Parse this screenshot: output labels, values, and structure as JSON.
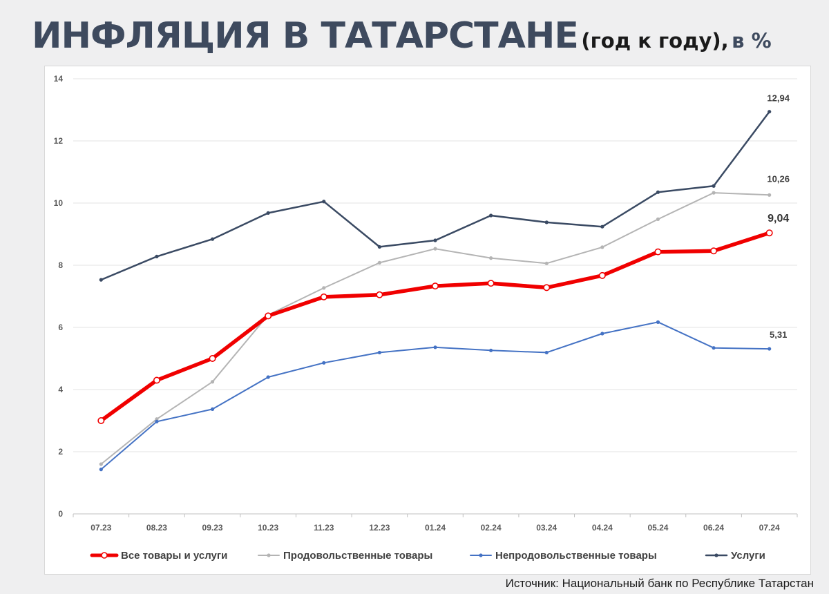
{
  "title": {
    "main": "ИНФЛЯЦИЯ В ТАТАРСТАНЕ",
    "sub": "(год к году),",
    "unit": "в %"
  },
  "source": "Источник: Национальный банк по Республике Татарстан",
  "chart_data": {
    "type": "line",
    "categories": [
      "07.23",
      "08.23",
      "09.23",
      "10.23",
      "11.23",
      "12.23",
      "01.24",
      "02.24",
      "03.24",
      "04.24",
      "05.24",
      "06.24",
      "07.24"
    ],
    "ylim": [
      0,
      14
    ],
    "yticks": [
      0,
      2,
      4,
      6,
      8,
      10,
      12,
      14
    ],
    "grid": true,
    "legend": "bottom",
    "series": [
      {
        "name": "Все товары и услуги",
        "color": "#f00000",
        "values": [
          3.0,
          4.3,
          5.0,
          6.37,
          6.98,
          7.05,
          7.33,
          7.42,
          7.28,
          7.67,
          8.43,
          8.46,
          9.04
        ],
        "end_label": "9,04"
      },
      {
        "name": "Продовольственные товары",
        "color": "#b4b4b4",
        "values": [
          1.6,
          3.05,
          4.25,
          6.4,
          7.27,
          8.08,
          8.53,
          8.23,
          8.06,
          8.58,
          9.48,
          10.33,
          10.26
        ],
        "end_label": "10,26"
      },
      {
        "name": "Непродовольственные товары",
        "color": "#4472c4",
        "values": [
          1.43,
          2.97,
          3.37,
          4.4,
          4.86,
          5.19,
          5.36,
          5.26,
          5.19,
          5.8,
          6.17,
          5.34,
          5.31
        ],
        "end_label": "5,31"
      },
      {
        "name": "Услуги",
        "color": "#3a4a63",
        "values": [
          7.53,
          8.28,
          8.84,
          9.68,
          10.05,
          8.59,
          8.8,
          9.6,
          9.38,
          9.24,
          10.35,
          10.55,
          12.94
        ],
        "end_label": "12,94"
      }
    ]
  }
}
